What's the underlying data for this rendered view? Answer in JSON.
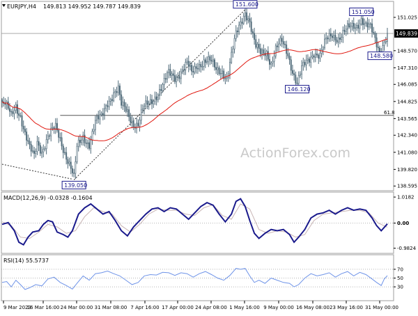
{
  "header": {
    "symbol": "EURJPY,H4",
    "open": "149.813",
    "high": "149.952",
    "low": "149.787",
    "close": "149.839"
  },
  "watermark": "ActionForex.com",
  "colors": {
    "candles": "#4f6a79",
    "ma": "#e0180f",
    "macd": "#1a1a8c",
    "signal": "#c8b4b4",
    "rsi": "#6e93e8",
    "grid": "#9e9e9e",
    "callout_border": "#1a1a8c"
  },
  "chart_data": [
    {
      "type": "candlestick",
      "title": "EURJPY,H4",
      "y_ticks": [
        "151.025",
        "149.839",
        "148.570",
        "147.310",
        "146.085",
        "144.825",
        "143.565",
        "142.340",
        "141.080",
        "139.820",
        "138.595"
      ],
      "ylim": [
        138.3,
        152.1
      ],
      "x_ticks": [
        "9 Mar 2023",
        "16 Mar 16:00",
        "24 Mar 00:00",
        "31 Mar 08:00",
        "7 Apr 16:00",
        "17 Apr 00:00",
        "24 Apr 08:00",
        "1 May 16:00",
        "9 May 00:00",
        "16 May 08:00",
        "23 May 16:00",
        "31 May 00:00"
      ],
      "current_price": "149.839",
      "levels": [
        {
          "label": "61.8",
          "value": 143.8
        }
      ],
      "callouts": [
        {
          "label": "151.600",
          "value": 151.6
        },
        {
          "label": "151.050",
          "value": 151.05
        },
        {
          "label": "148.580",
          "value": 148.58
        },
        {
          "label": "146.120",
          "value": 146.12
        },
        {
          "label": "139.050",
          "value": 139.05
        }
      ],
      "ma_period": 55,
      "close_path": [
        [
          0,
          144.8
        ],
        [
          3,
          144.3
        ],
        [
          6,
          143.7
        ],
        [
          9,
          144.6
        ],
        [
          12,
          143.9
        ],
        [
          15,
          142.4
        ],
        [
          18,
          141.2
        ],
        [
          21,
          140.7
        ],
        [
          23,
          141.9
        ],
        [
          26,
          141.3
        ],
        [
          30,
          142.2
        ],
        [
          35,
          142.8
        ],
        [
          38,
          142.1
        ],
        [
          42,
          140.9
        ],
        [
          45,
          139.9
        ],
        [
          47,
          139.05
        ],
        [
          49,
          141.3
        ],
        [
          53,
          142.3
        ],
        [
          57,
          141.8
        ],
        [
          61,
          143.2
        ],
        [
          65,
          143.6
        ],
        [
          69,
          144.9
        ],
        [
          73,
          145.5
        ],
        [
          76,
          145.6
        ],
        [
          78,
          144.4
        ],
        [
          82,
          144.1
        ],
        [
          86,
          143.3
        ],
        [
          89,
          143.1
        ],
        [
          92,
          144.1
        ],
        [
          96,
          144.7
        ],
        [
          100,
          145.3
        ],
        [
          105,
          145.9
        ],
        [
          109,
          146.8
        ],
        [
          113,
          146.7
        ],
        [
          117,
          147.1
        ],
        [
          121,
          147.5
        ],
        [
          124,
          146.8
        ],
        [
          128,
          147.6
        ],
        [
          132,
          147.9
        ],
        [
          136,
          147.7
        ],
        [
          140,
          147.1
        ],
        [
          144,
          147.2
        ],
        [
          147,
          146.6
        ],
        [
          150,
          148.1
        ],
        [
          153,
          149.6
        ],
        [
          156,
          150.6
        ],
        [
          159,
          151.6
        ],
        [
          162,
          150.8
        ],
        [
          164,
          149.6
        ],
        [
          166,
          148.7
        ],
        [
          169,
          148.3
        ],
        [
          173,
          148.6
        ],
        [
          176,
          147.7
        ],
        [
          179,
          148.6
        ],
        [
          183,
          149.1
        ],
        [
          187,
          148.4
        ],
        [
          190,
          147.2
        ],
        [
          193,
          146.12
        ],
        [
          196,
          147.1
        ],
        [
          200,
          147.8
        ],
        [
          204,
          148.6
        ],
        [
          208,
          148.2
        ],
        [
          212,
          149.2
        ],
        [
          216,
          149.8
        ],
        [
          220,
          149.6
        ],
        [
          224,
          149.9
        ],
        [
          228,
          150.2
        ],
        [
          232,
          150.5
        ],
        [
          235,
          151.05
        ],
        [
          238,
          150.4
        ],
        [
          241,
          150.1
        ],
        [
          244,
          149.3
        ],
        [
          247,
          148.58
        ],
        [
          250,
          149.4
        ],
        [
          252,
          149.84
        ]
      ]
    },
    {
      "type": "line",
      "title": "MACD(12,26,9) -0.0328 -0.1604",
      "y_ticks": [
        "1.0182",
        "0.00",
        "-0.9824"
      ],
      "current_value": "0.00",
      "ylim": [
        -1.13,
        1.13
      ],
      "series": [
        {
          "values": [
            [
              0,
              -0.05
            ],
            [
              4,
              0.02
            ],
            [
              8,
              -0.3
            ],
            [
              11,
              -0.75
            ],
            [
              14,
              -0.85
            ],
            [
              17,
              -0.55
            ],
            [
              20,
              -0.35
            ],
            [
              24,
              -0.3
            ],
            [
              27,
              -0.05
            ],
            [
              30,
              0.1
            ],
            [
              33,
              0.05
            ],
            [
              36,
              -0.35
            ],
            [
              40,
              -0.45
            ],
            [
              43,
              -0.55
            ],
            [
              46,
              -0.3
            ],
            [
              50,
              0.35
            ],
            [
              54,
              0.6
            ],
            [
              58,
              0.75
            ],
            [
              62,
              0.55
            ],
            [
              66,
              0.35
            ],
            [
              70,
              0.45
            ],
            [
              74,
              0.1
            ],
            [
              78,
              -0.3
            ],
            [
              82,
              -0.5
            ],
            [
              86,
              -0.15
            ],
            [
              90,
              0.1
            ],
            [
              94,
              0.35
            ],
            [
              98,
              0.55
            ],
            [
              102,
              0.6
            ],
            [
              106,
              0.45
            ],
            [
              110,
              0.6
            ],
            [
              114,
              0.55
            ],
            [
              118,
              0.35
            ],
            [
              122,
              0.15
            ],
            [
              126,
              0.4
            ],
            [
              130,
              0.65
            ],
            [
              134,
              0.8
            ],
            [
              138,
              0.7
            ],
            [
              142,
              0.35
            ],
            [
              146,
              0.05
            ],
            [
              150,
              0.35
            ],
            [
              153,
              0.85
            ],
            [
              156,
              0.95
            ],
            [
              159,
              0.65
            ],
            [
              162,
              0.1
            ],
            [
              165,
              -0.4
            ],
            [
              168,
              -0.6
            ],
            [
              172,
              -0.4
            ],
            [
              176,
              -0.25
            ],
            [
              180,
              -0.3
            ],
            [
              184,
              -0.25
            ],
            [
              188,
              -0.45
            ],
            [
              191,
              -0.75
            ],
            [
              194,
              -0.55
            ],
            [
              198,
              -0.25
            ],
            [
              202,
              0.2
            ],
            [
              206,
              0.35
            ],
            [
              210,
              0.4
            ],
            [
              214,
              0.5
            ],
            [
              218,
              0.35
            ],
            [
              222,
              0.5
            ],
            [
              226,
              0.6
            ],
            [
              230,
              0.5
            ],
            [
              234,
              0.55
            ],
            [
              238,
              0.5
            ],
            [
              242,
              0.2
            ],
            [
              245,
              -0.1
            ],
            [
              248,
              -0.3
            ],
            [
              251,
              -0.1
            ],
            [
              252,
              -0.03
            ]
          ]
        },
        {
          "values": [
            [
              0,
              0.05
            ],
            [
              6,
              -0.1
            ],
            [
              12,
              -0.55
            ],
            [
              18,
              -0.6
            ],
            [
              24,
              -0.35
            ],
            [
              30,
              -0.05
            ],
            [
              36,
              -0.15
            ],
            [
              42,
              -0.4
            ],
            [
              48,
              -0.3
            ],
            [
              54,
              0.25
            ],
            [
              60,
              0.6
            ],
            [
              66,
              0.45
            ],
            [
              72,
              0.35
            ],
            [
              78,
              -0.1
            ],
            [
              84,
              -0.35
            ],
            [
              90,
              -0.05
            ],
            [
              96,
              0.35
            ],
            [
              102,
              0.55
            ],
            [
              108,
              0.5
            ],
            [
              114,
              0.5
            ],
            [
              120,
              0.35
            ],
            [
              126,
              0.3
            ],
            [
              132,
              0.6
            ],
            [
              138,
              0.72
            ],
            [
              144,
              0.3
            ],
            [
              150,
              0.15
            ],
            [
              156,
              0.75
            ],
            [
              162,
              0.55
            ],
            [
              168,
              -0.25
            ],
            [
              174,
              -0.4
            ],
            [
              180,
              -0.3
            ],
            [
              186,
              -0.35
            ],
            [
              192,
              -0.55
            ],
            [
              198,
              -0.45
            ],
            [
              204,
              0.1
            ],
            [
              210,
              0.35
            ],
            [
              216,
              0.4
            ],
            [
              222,
              0.45
            ],
            [
              228,
              0.5
            ],
            [
              234,
              0.5
            ],
            [
              240,
              0.4
            ],
            [
              246,
              0.0
            ],
            [
              252,
              -0.16
            ]
          ]
        }
      ]
    },
    {
      "type": "line",
      "title": "RSI(14) 55.5737",
      "y_ticks": [
        "70",
        "50",
        "30"
      ],
      "ylim": [
        0,
        100
      ],
      "series": [
        {
          "values": [
            [
              0,
              40
            ],
            [
              3,
              42
            ],
            [
              6,
              30
            ],
            [
              9,
              45
            ],
            [
              12,
              35
            ],
            [
              15,
              24
            ],
            [
              18,
              28
            ],
            [
              22,
              35
            ],
            [
              26,
              32
            ],
            [
              30,
              48
            ],
            [
              34,
              52
            ],
            [
              38,
              40
            ],
            [
              42,
              33
            ],
            [
              46,
              25
            ],
            [
              49,
              38
            ],
            [
              53,
              55
            ],
            [
              57,
              45
            ],
            [
              61,
              60
            ],
            [
              65,
              62
            ],
            [
              69,
              66
            ],
            [
              73,
              60
            ],
            [
              77,
              55
            ],
            [
              81,
              45
            ],
            [
              85,
              35
            ],
            [
              89,
              40
            ],
            [
              93,
              55
            ],
            [
              97,
              58
            ],
            [
              101,
              57
            ],
            [
              105,
              63
            ],
            [
              109,
              62
            ],
            [
              113,
              56
            ],
            [
              117,
              62
            ],
            [
              121,
              60
            ],
            [
              125,
              52
            ],
            [
              129,
              60
            ],
            [
              133,
              65
            ],
            [
              137,
              58
            ],
            [
              141,
              50
            ],
            [
              145,
              45
            ],
            [
              149,
              56
            ],
            [
              153,
              72
            ],
            [
              156,
              70
            ],
            [
              159,
              72
            ],
            [
              162,
              55
            ],
            [
              165,
              40
            ],
            [
              168,
              45
            ],
            [
              172,
              38
            ],
            [
              176,
              50
            ],
            [
              180,
              45
            ],
            [
              184,
              40
            ],
            [
              188,
              38
            ],
            [
              191,
              30
            ],
            [
              194,
              35
            ],
            [
              198,
              50
            ],
            [
              202,
              60
            ],
            [
              206,
              55
            ],
            [
              210,
              58
            ],
            [
              214,
              62
            ],
            [
              218,
              52
            ],
            [
              222,
              60
            ],
            [
              226,
              65
            ],
            [
              230,
              55
            ],
            [
              234,
              63
            ],
            [
              238,
              58
            ],
            [
              242,
              48
            ],
            [
              245,
              40
            ],
            [
              248,
              33
            ],
            [
              250,
              48
            ],
            [
              252,
              55.57
            ]
          ]
        }
      ]
    }
  ]
}
